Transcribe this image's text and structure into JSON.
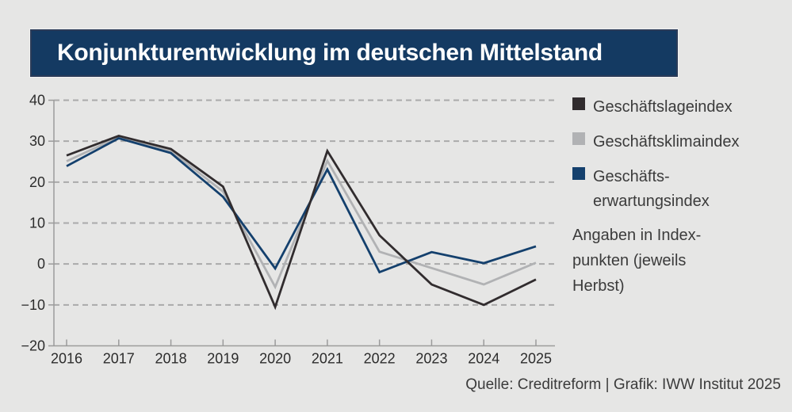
{
  "title": "Konjunkturentwicklung im deutschen Mittelstand",
  "source": "Quelle: Creditreform | Grafik: IWW Institut 2025",
  "note": "Angaben in Index-\npunkten (jeweils\nHerbst)",
  "colors": {
    "background": "#e6e6e5",
    "banner": "#143a62",
    "title_text": "#ffffff",
    "grid": "#aaaaaa",
    "axis": "#9b9b9b",
    "tick_text": "#2c2c2c",
    "body_text": "#3b3b3b",
    "series_lage": "#312c2e",
    "series_klima": "#b1b2b4",
    "series_erwartung": "#14406d"
  },
  "legend": {
    "items": [
      {
        "label": "Geschäftslageindex"
      },
      {
        "label": "Geschäftsklimaindex"
      },
      {
        "label": "Geschäfts-",
        "label2": "erwartungsindex"
      }
    ]
  },
  "chart_data": {
    "type": "line",
    "title": "Konjunkturentwicklung im deutschen Mittelstand",
    "x": [
      2016,
      2017,
      2018,
      2019,
      2020,
      2021,
      2022,
      2023,
      2024,
      2025
    ],
    "series": [
      {
        "name": "Geschäftslageindex",
        "color": "#312c2e",
        "values": [
          26.5,
          31.3,
          28.1,
          18.9,
          -10.5,
          27.6,
          7.0,
          -5.0,
          -10.0,
          -3.8
        ]
      },
      {
        "name": "Geschäftsklimaindex",
        "color": "#b1b2b4",
        "values": [
          25.1,
          31.0,
          27.6,
          17.7,
          -5.6,
          25.2,
          3.0,
          -1.0,
          -5.0,
          0.3
        ]
      },
      {
        "name": "Geschäftserwartungsindex",
        "color": "#14406d",
        "values": [
          23.9,
          30.7,
          27.1,
          16.4,
          -1.1,
          23.1,
          -2.0,
          2.9,
          0.2,
          4.3
        ]
      }
    ],
    "xlabel": "",
    "ylabel": "",
    "ylim": [
      -20,
      40
    ],
    "yticks": [
      40,
      30,
      20,
      10,
      0,
      -10,
      -20
    ],
    "grid": "horizontal-dashed",
    "legend_position": "right",
    "annotation": "Angaben in Indexpunkten (jeweils Herbst)"
  }
}
